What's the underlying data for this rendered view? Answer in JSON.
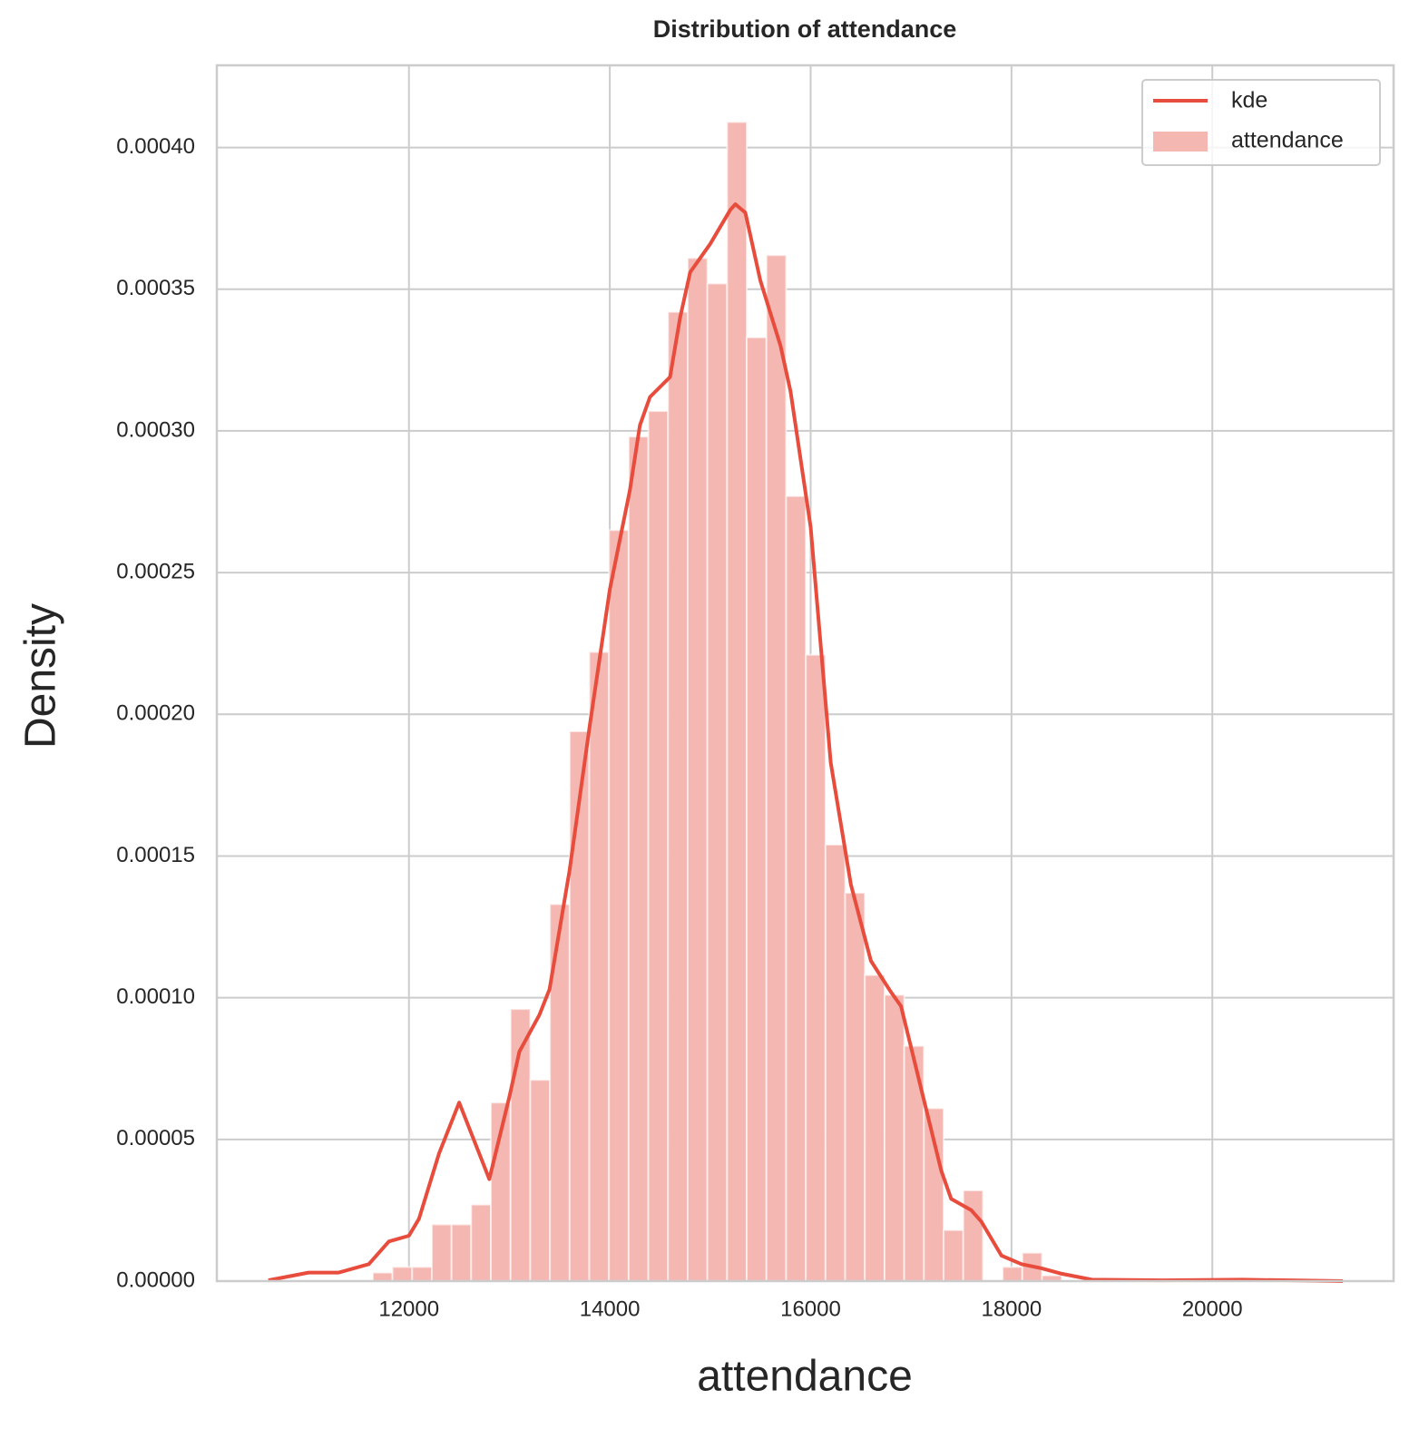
{
  "chart_data": {
    "type": "histogram",
    "title": "Distribution of attendance",
    "x_label": "attendance",
    "y_label": "Density",
    "grid": true,
    "legend": "upper right",
    "xlim": [
      10087,
      21805
    ],
    "xticks": [
      12000,
      14000,
      16000,
      18000,
      20000
    ],
    "ylim": [
      0,
      0.000429
    ],
    "yticks": [
      {
        "value": 0,
        "label": "0.00000"
      },
      {
        "value": 5e-05,
        "label": "0.00005"
      },
      {
        "value": 0.0001,
        "label": "0.00010"
      },
      {
        "value": 0.00015,
        "label": "0.00015"
      },
      {
        "value": 0.0002,
        "label": "0.00020"
      },
      {
        "value": 0.00025,
        "label": "0.00025"
      },
      {
        "value": 0.0003,
        "label": "0.00030"
      },
      {
        "value": 0.00035,
        "label": "0.00035"
      },
      {
        "value": 0.0004,
        "label": "0.00040"
      }
    ],
    "bins": [
      11640,
      11836,
      12032,
      12228,
      12424,
      12620,
      12816,
      13012,
      13208,
      13404,
      13600,
      13796,
      13992,
      14188,
      14384,
      14580,
      14776,
      14972,
      15168,
      15364,
      15560,
      15756,
      15952,
      16148,
      16344,
      16540,
      16736,
      16932,
      17128,
      17324,
      17520,
      17716,
      17912,
      18108,
      18304,
      18500
    ],
    "histogram": {
      "name": "attendance",
      "color": "#f5b7b1",
      "values": [
        3e-06,
        5e-06,
        5e-06,
        2e-05,
        2e-05,
        2.7e-05,
        6.3e-05,
        9.6e-05,
        7.1e-05,
        0.000133,
        0.000194,
        0.000222,
        0.000265,
        0.000298,
        0.000307,
        0.000342,
        0.000361,
        0.000352,
        0.000409,
        0.000333,
        0.000362,
        0.000277,
        0.000221,
        0.000154,
        0.000137,
        0.000108,
        0.000101,
        8.3e-05,
        6.1e-05,
        1.8e-05,
        3.2e-05,
        0,
        5e-06,
        1e-05,
        2e-06
      ]
    },
    "kde": {
      "name": "kde",
      "color": "#e74c3c",
      "x": [
        10600,
        11000,
        11300,
        11600,
        11800,
        12000,
        12100,
        12300,
        12500,
        12800,
        13000,
        13100,
        13300,
        13400,
        13600,
        13800,
        14000,
        14200,
        14300,
        14400,
        14600,
        14700,
        14800,
        15000,
        15200,
        15250,
        15350,
        15500,
        15700,
        15800,
        16000,
        16200,
        16400,
        16600,
        16800,
        16900,
        17100,
        17300,
        17400,
        17600,
        17700,
        17900,
        18100,
        18300,
        18500,
        18800,
        19500,
        20300,
        21300
      ],
      "values": [
        3e-07,
        3e-06,
        3e-06,
        6e-06,
        1.4e-05,
        1.6e-05,
        2.2e-05,
        4.5e-05,
        6.3e-05,
        3.6e-05,
        6.5e-05,
        8.1e-05,
        9.4e-05,
        0.000103,
        0.000145,
        0.000196,
        0.000244,
        0.000279,
        0.000302,
        0.000312,
        0.000319,
        0.00034,
        0.000356,
        0.000366,
        0.000378,
        0.00038,
        0.000377,
        0.000353,
        0.00033,
        0.000314,
        0.000266,
        0.000183,
        0.00014,
        0.000113,
        0.000102,
        9.7e-05,
        6.8e-05,
        3.9e-05,
        2.9e-05,
        2.5e-05,
        2.1e-05,
        9e-06,
        6e-06,
        4.5e-06,
        2.6e-06,
        5e-07,
        3e-07,
        5e-07,
        0
      ]
    }
  }
}
